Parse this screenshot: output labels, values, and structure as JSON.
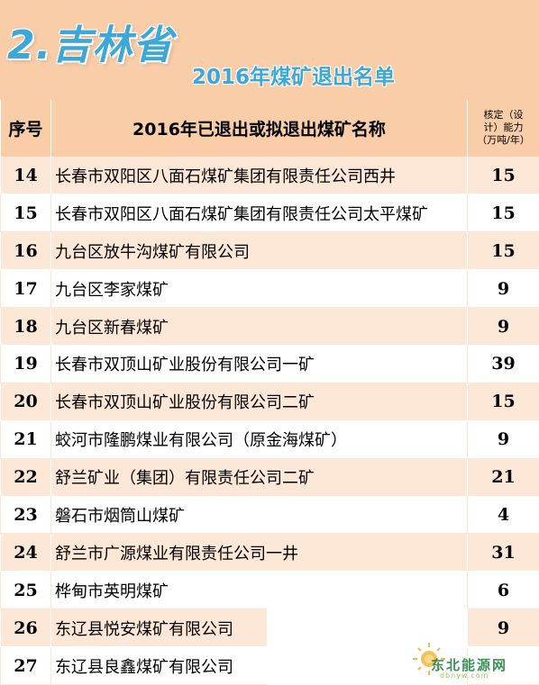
{
  "header": {
    "province": "2.吉林省",
    "subtitle": "2016年煤矿退出名单"
  },
  "columns": {
    "seq": "序号",
    "name": "2016年已退出或拟退出煤矿名称",
    "capacity_line1": "核定（设",
    "capacity_line2": "计）能力",
    "capacity_line3": "（万吨/年）"
  },
  "rows": [
    {
      "seq": "14",
      "name": "长春市双阳区八面石煤矿集团有限责任公司西井",
      "capacity": "15"
    },
    {
      "seq": "15",
      "name": "长春市双阳区八面石煤矿集团有限责任公司太平煤矿",
      "capacity": "15"
    },
    {
      "seq": "16",
      "name": "九台区放牛沟煤矿有限公司",
      "capacity": "15"
    },
    {
      "seq": "17",
      "name": "九台区李家煤矿",
      "capacity": "9"
    },
    {
      "seq": "18",
      "name": "九台区新春煤矿",
      "capacity": "9"
    },
    {
      "seq": "19",
      "name": "长春市双顶山矿业股份有限公司一矿",
      "capacity": "39"
    },
    {
      "seq": "20",
      "name": "长春市双顶山矿业股份有限公司二矿",
      "capacity": "15"
    },
    {
      "seq": "21",
      "name": "蛟河市隆鹏煤业有限公司（原金海煤矿）",
      "capacity": "9"
    },
    {
      "seq": "22",
      "name": "舒兰矿业（集团）有限责任公司二矿",
      "capacity": "21"
    },
    {
      "seq": "23",
      "name": "磐石市烟筒山煤矿",
      "capacity": "4"
    },
    {
      "seq": "24",
      "name": "舒兰市广源煤业有限责任公司一井",
      "capacity": "31"
    },
    {
      "seq": "25",
      "name": "桦甸市英明煤矿",
      "capacity": "6"
    },
    {
      "seq": "26",
      "name": "东辽县悦安煤矿有限公司",
      "capacity": "9"
    },
    {
      "seq": "27",
      "name": "东辽县良鑫煤矿有限公司",
      "capacity": ""
    }
  ],
  "watermark": {
    "text": "东北能源网",
    "sub": "dbnyw.com"
  },
  "colors": {
    "header_bg": "#f9cda8",
    "title_blue": "#3ba8d8",
    "row_odd": "#fde7d6",
    "row_even": "#ffffff"
  }
}
